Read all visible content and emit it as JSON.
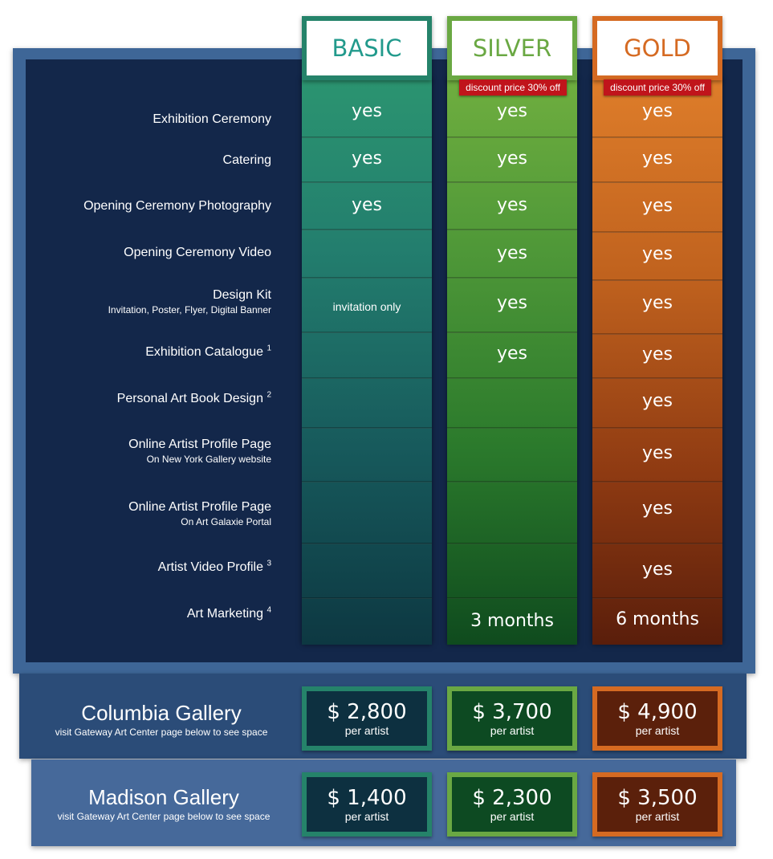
{
  "tiers": {
    "basic": "BASIC",
    "silver": "SILVER",
    "gold": "GOLD"
  },
  "discount_badge": "discount price 30% off",
  "features": [
    {
      "label": "Exhibition Ceremony",
      "sub": "",
      "footnote": "",
      "basic": "yes",
      "silver": "yes",
      "gold": "yes"
    },
    {
      "label": "Catering",
      "sub": "",
      "footnote": "",
      "basic": "yes",
      "silver": "yes",
      "gold": "yes"
    },
    {
      "label": "Opening Ceremony Photography",
      "sub": "",
      "footnote": "",
      "basic": "yes",
      "silver": "yes",
      "gold": "yes"
    },
    {
      "label": "Opening Ceremony Video",
      "sub": "",
      "footnote": "",
      "basic": "",
      "silver": "yes",
      "gold": "yes"
    },
    {
      "label": "Design Kit",
      "sub": "Invitation, Poster, Flyer, Digital Banner",
      "footnote": "",
      "basic": "invitation only",
      "silver": "yes",
      "gold": "yes"
    },
    {
      "label": "Exhibition Catalogue",
      "sub": "",
      "footnote": "1",
      "basic": "",
      "silver": "yes",
      "gold": "yes"
    },
    {
      "label": "Personal Art Book Design",
      "sub": "",
      "footnote": "2",
      "basic": "",
      "silver": "",
      "gold": "yes"
    },
    {
      "label": "Online Artist Profile Page",
      "sub": "On New York Gallery website",
      "footnote": "",
      "basic": "",
      "silver": "",
      "gold": "yes"
    },
    {
      "label": "Online Artist Profile Page",
      "sub": "On Art Galaxie Portal",
      "footnote": "",
      "basic": "",
      "silver": "",
      "gold": "yes"
    },
    {
      "label": "Artist Video Profile",
      "sub": "",
      "footnote": "3",
      "basic": "",
      "silver": "",
      "gold": "yes"
    },
    {
      "label": "Art Marketing",
      "sub": "",
      "footnote": "4",
      "basic": "",
      "silver": "3 months",
      "gold": "6 months"
    }
  ],
  "galleries": [
    {
      "name": "Columbia Gallery",
      "note": "visit Gateway Art Center page below to see space",
      "prices": {
        "basic": "$ 2,800",
        "silver": "$ 3,700",
        "gold": "$ 4,900"
      },
      "per": "per artist"
    },
    {
      "name": "Madison Gallery",
      "note": "visit Gateway Art Center page below to see space",
      "prices": {
        "basic": "$ 1,400",
        "silver": "$ 2,300",
        "gold": "$ 3,500"
      },
      "per": "per artist"
    }
  ],
  "colors": {
    "basic": "#25836a",
    "silver": "#6aa843",
    "gold": "#d56a22",
    "badge": "#c0141b",
    "panel": "#13274a",
    "frame": "#3e6697"
  }
}
